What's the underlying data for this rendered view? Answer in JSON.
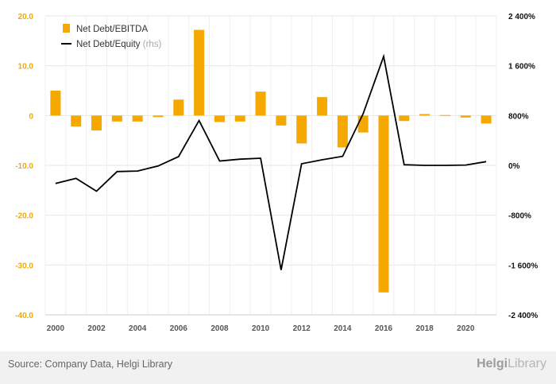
{
  "chart_data": {
    "type": "bar+line",
    "categories": [
      2000,
      2001,
      2002,
      2003,
      2004,
      2005,
      2006,
      2007,
      2008,
      2009,
      2010,
      2011,
      2012,
      2013,
      2014,
      2015,
      2016,
      2017,
      2018,
      2019,
      2020,
      2021
    ],
    "x_tick_labels": [
      "2000",
      "2002",
      "2004",
      "2006",
      "2008",
      "2010",
      "2012",
      "2014",
      "2016",
      "2018",
      "2020"
    ],
    "series": [
      {
        "name": "Net Debt/EBITDA",
        "type": "bar",
        "axis": "left",
        "color": "#f5a800",
        "values": [
          5.0,
          -2.2,
          -3.0,
          -1.2,
          -1.2,
          -0.3,
          3.2,
          17.2,
          -1.3,
          -1.2,
          4.8,
          -2.0,
          -5.6,
          3.7,
          -6.4,
          -3.4,
          -35.5,
          -1.1,
          0.3,
          0.1,
          -0.4,
          -1.6
        ]
      },
      {
        "name": "Net Debt/Equity",
        "name_suffix": "(rhs)",
        "type": "line",
        "axis": "right",
        "color": "#000000",
        "values": [
          -290,
          -210,
          -415,
          -100,
          -90,
          -10,
          140,
          720,
          70,
          100,
          115,
          -1680,
          25,
          90,
          145,
          830,
          1750,
          10,
          0,
          0,
          5,
          60
        ]
      }
    ],
    "left_axis": {
      "min": -40,
      "max": 20,
      "ticks": [
        "20.0",
        "10.0",
        "0",
        "-10.0",
        "-20.0",
        "-30.0",
        "-40.0"
      ],
      "tick_color": "#f5a800"
    },
    "right_axis": {
      "min": -2400,
      "max": 2400,
      "ticks": [
        "2 400%",
        "1 600%",
        "800%",
        "0%",
        "-800%",
        "-1 600%",
        "-2 400%"
      ]
    },
    "grid": true,
    "legend_position": "top-left"
  },
  "footer": {
    "source": "Source: Company Data, Helgi Library",
    "brand_prefix": "Helgi",
    "brand_suffix": "Library"
  }
}
